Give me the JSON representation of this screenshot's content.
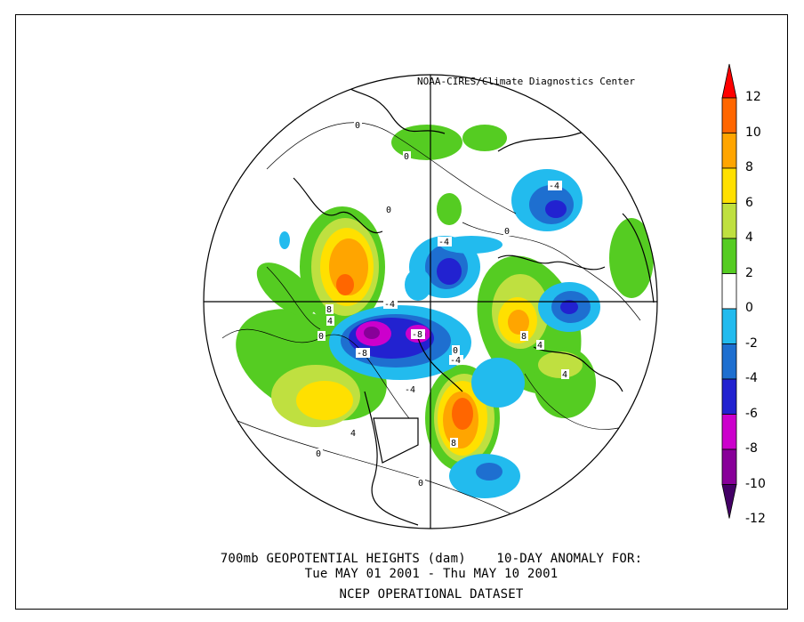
{
  "credit": "NOAA-CIRES/Climate Diagnostics Center",
  "title": {
    "line1": "700mb GEOPOTENTIAL HEIGHTS (dam)    10-DAY ANOMALY FOR:",
    "line2": "Tue MAY 01 2001 - Thu MAY 10 2001",
    "line3": "NCEP OPERATIONAL DATASET"
  },
  "legend": {
    "labels": [
      "12",
      "10",
      "8",
      "6",
      "4",
      "2",
      "0",
      "-2",
      "-4",
      "-6",
      "-8",
      "-10",
      "-12"
    ],
    "colors": [
      "#ff0000",
      "#ff6600",
      "#ffa500",
      "#ffe000",
      "#bfe040",
      "#55cc22",
      "#ffffff",
      "#22bbee",
      "#1e6fd0",
      "#2222d0",
      "#cc00cc",
      "#880099",
      "#440066"
    ]
  },
  "contour_labels": [
    "0",
    "0",
    "0",
    "0",
    "0",
    "0",
    "0",
    "0",
    "-4",
    "-4",
    "-4",
    "-4",
    "-4",
    "-8",
    "-8",
    "4",
    "4",
    "4",
    "4",
    "8",
    "8",
    "8"
  ]
}
